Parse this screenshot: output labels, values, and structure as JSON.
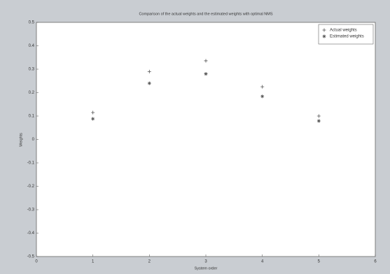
{
  "chart_data": {
    "type": "scatter",
    "title": "Comparison of the actual weights and the estimated weights with optimal NMS",
    "x_label": "System order",
    "y_label": "Weights",
    "series": [
      {
        "name": "Actual weights",
        "color": "#555555",
        "marker": "+",
        "x": [
          1,
          2,
          3,
          4,
          5
        ],
        "values": [
          0.115,
          0.29,
          0.336,
          0.225,
          0.1
        ]
      },
      {
        "name": "Estimated weights",
        "color": "#555555",
        "marker": "*",
        "x": [
          1,
          2,
          3,
          4,
          5
        ],
        "values": [
          0.088,
          0.24,
          0.28,
          0.184,
          0.079
        ]
      }
    ],
    "xlim": [
      0,
      6
    ],
    "xticks": [
      0,
      1,
      2,
      3,
      4,
      5,
      6
    ],
    "ylim": [
      -0.5,
      0.5
    ],
    "yticks": [
      -0.5,
      -0.4,
      -0.3,
      -0.2,
      -0.1,
      0,
      0.1,
      0.2,
      0.3,
      0.4,
      0.5
    ],
    "legend": "upper right"
  }
}
